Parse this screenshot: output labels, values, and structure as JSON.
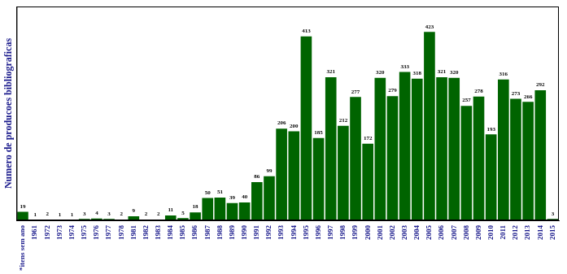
{
  "chart_data": {
    "type": "bar",
    "ylabel": "Numero de producoes bibliograficas",
    "categories": [
      "*itens sem ano",
      "1961",
      "1972",
      "1973",
      "1974",
      "1975",
      "1976",
      "1977",
      "1978",
      "1981",
      "1982",
      "1983",
      "1984",
      "1985",
      "1986",
      "1987",
      "1988",
      "1989",
      "1990",
      "1991",
      "1992",
      "1993",
      "1994",
      "1995",
      "1996",
      "1997",
      "1998",
      "1999",
      "2000",
      "2001",
      "2002",
      "2003",
      "2004",
      "2005",
      "2006",
      "2007",
      "2008",
      "2009",
      "2010",
      "2011",
      "2012",
      "2013",
      "2014",
      "2015"
    ],
    "values": [
      19,
      1,
      2,
      1,
      1,
      3,
      4,
      3,
      2,
      9,
      2,
      2,
      11,
      5,
      18,
      50,
      51,
      39,
      40,
      86,
      99,
      206,
      200,
      413,
      185,
      321,
      212,
      277,
      172,
      320,
      279,
      333,
      318,
      423,
      321,
      320,
      257,
      278,
      193,
      316,
      273,
      266,
      292,
      3
    ],
    "color": "#006400",
    "ylim": [
      0,
      480
    ],
    "data_labels": true,
    "tick_labels": "x",
    "grid": false
  }
}
